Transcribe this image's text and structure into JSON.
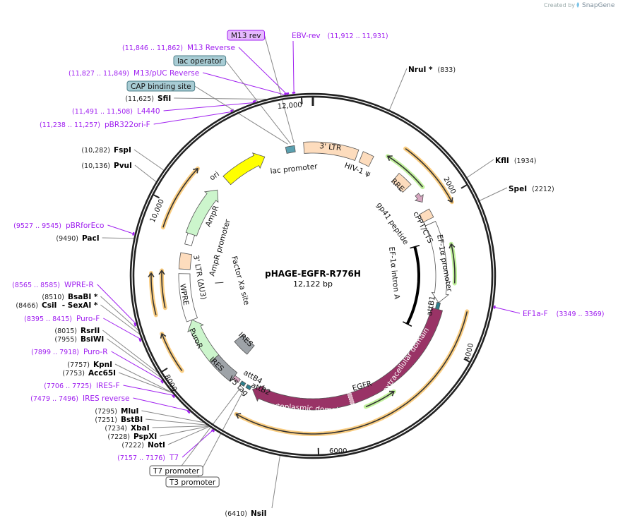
{
  "branding": {
    "created_by": "Created by",
    "app": "SnapGene"
  },
  "map": {
    "name": "pHAGE-EGFR-R776H",
    "length_label": "12,122 bp",
    "length_bp": 12122
  },
  "ticks": [
    {
      "bp": 2000,
      "label": "2000"
    },
    {
      "bp": 4000,
      "label": "4000"
    },
    {
      "bp": 6000,
      "label": "6000"
    },
    {
      "bp": 8000,
      "label": "8000"
    },
    {
      "bp": 10000,
      "label": "10,000"
    },
    {
      "bp": 12000,
      "label": "12,000"
    }
  ],
  "enzymes": [
    {
      "name": "NruI *",
      "pos_label": "(833)",
      "bp": 833
    },
    {
      "name": "KflI",
      "pos_label": "(1934)",
      "bp": 1934
    },
    {
      "name": "SpeI",
      "pos_label": "(2212)",
      "bp": 2212
    },
    {
      "name": "NsiI",
      "pos_label": "(6410)",
      "bp": 6410
    },
    {
      "name": "SfiI",
      "pos_label": "(11,625)",
      "bp": 11625
    },
    {
      "name": "FspI",
      "pos_label": "(10,282)",
      "bp": 10282
    },
    {
      "name": "PvuI",
      "pos_label": "(10,136)",
      "bp": 10136
    },
    {
      "name": "PacI",
      "pos_label": "(9490)",
      "bp": 9490
    },
    {
      "name": "BsaBI *",
      "pos_label": "(8510)",
      "bp": 8510
    },
    {
      "name": "CsiI  - SexAI *",
      "pos_label": "(8466)",
      "bp": 8466
    },
    {
      "name": "RsrII",
      "pos_label": "(8015)",
      "bp": 8015
    },
    {
      "name": "BsiWI",
      "pos_label": "(7955)",
      "bp": 7955
    },
    {
      "name": "KpnI",
      "pos_label": "(7757)",
      "bp": 7757
    },
    {
      "name": "Acc65I",
      "pos_label": "(7753)",
      "bp": 7753
    },
    {
      "name": "MluI",
      "pos_label": "(7295)",
      "bp": 7295
    },
    {
      "name": "BstBI",
      "pos_label": "(7251)",
      "bp": 7251
    },
    {
      "name": "XbaI",
      "pos_label": "(7234)",
      "bp": 7234
    },
    {
      "name": "PspXI",
      "pos_label": "(7228)",
      "bp": 7228
    },
    {
      "name": "NotI",
      "pos_label": "(7222)",
      "bp": 7222
    }
  ],
  "primers": [
    {
      "name": "M13 Reverse",
      "range": "(11,846 .. 11,862)",
      "start": 11846,
      "end": 11862
    },
    {
      "name": "M13/pUC Reverse",
      "range": "(11,827 .. 11,849)",
      "start": 11827,
      "end": 11849
    },
    {
      "name": "L4440",
      "range": "(11,491 .. 11,508)",
      "start": 11491,
      "end": 11508
    },
    {
      "name": "pBR322ori-F",
      "range": "(11,238 .. 11,257)",
      "start": 11238,
      "end": 11257
    },
    {
      "name": "pBRforEco",
      "range": "(9527 .. 9545)",
      "start": 9527,
      "end": 9545
    },
    {
      "name": "WPRE-R",
      "range": "(8565 .. 8585)",
      "start": 8565,
      "end": 8585
    },
    {
      "name": "Puro-F",
      "range": "(8395 .. 8415)",
      "start": 8395,
      "end": 8415
    },
    {
      "name": "Puro-R",
      "range": "(7899 .. 7918)",
      "start": 7899,
      "end": 7918
    },
    {
      "name": "IRES-F",
      "range": "(7706 .. 7725)",
      "start": 7706,
      "end": 7725
    },
    {
      "name": "IRES reverse",
      "range": "(7479 .. 7496)",
      "start": 7479,
      "end": 7496
    },
    {
      "name": "T7",
      "range": "(7157 .. 7176)",
      "start": 7157,
      "end": 7176
    },
    {
      "name": "EBV-rev",
      "range": "(11,912 .. 11,931)",
      "start": 11912,
      "end": 11931
    },
    {
      "name": "EF1a-F",
      "range": "(3349 .. 3369)",
      "start": 3349,
      "end": 3369
    }
  ],
  "boxed_features": [
    {
      "name": "M13 rev",
      "bp": 11850,
      "fill": "#e6b8ff",
      "border": "#a020f0"
    },
    {
      "name": "lac operator",
      "bp": 11800,
      "fill": "#a8ccd4",
      "border": "#4d7f8a"
    },
    {
      "name": "CAP binding site",
      "bp": 11760,
      "fill": "#a8ccd4",
      "border": "#4d7f8a"
    },
    {
      "name": "T7 promoter",
      "bp": 7170,
      "fill": "#ffffff",
      "border": "#555555"
    },
    {
      "name": "T3 promoter",
      "bp": 7110,
      "fill": "#ffffff",
      "border": "#555555"
    }
  ],
  "features": [
    {
      "label": "3' LTR",
      "start": 11987,
      "end": 673,
      "color": "#fddcbd",
      "direction": "none"
    },
    {
      "label": "HIV-1 ψ",
      "start": 741,
      "end": 909,
      "color": "#fddcbd",
      "direction": "none"
    },
    {
      "label": "RRE",
      "start": 1347,
      "end": 1583,
      "color": "#fddcbd",
      "direction": "none"
    },
    {
      "label": "gp41 peptide",
      "start": 1751,
      "end": 1886,
      "color": "#d7a6c0",
      "direction": "fwd"
    },
    {
      "label": "cPPT/CTS",
      "start": 2020,
      "end": 2155,
      "color": "#fddcbd",
      "direction": "none"
    },
    {
      "label": "EF-1α promoter",
      "start": 2222,
      "end": 3435,
      "color": "#ffffff",
      "direction": "fwd"
    },
    {
      "label": "attB1",
      "start": 3435,
      "end": 3536,
      "color": "#2e7f8c",
      "direction": "none"
    },
    {
      "label": "EGFR",
      "start": 3536,
      "end": 7004,
      "color": "#993366",
      "direction": "fwd"
    },
    {
      "label": "attB2",
      "start": 7037,
      "end": 7105,
      "color": "#2e7f8c",
      "direction": "none"
    },
    {
      "label": "attB4",
      "start": 7139,
      "end": 7206,
      "color": "#2e7f8c",
      "direction": "none"
    },
    {
      "label": "V5 tag",
      "start": 7240,
      "end": 7341,
      "color": "#d7a6c0",
      "direction": "none"
    },
    {
      "label": "IRES",
      "start": 7341,
      "end": 7745,
      "color": "#9ea3a8",
      "direction": "none"
    },
    {
      "label": "PuroR",
      "start": 7745,
      "end": 8418,
      "color": "#ccf5cc",
      "direction": "fwd"
    },
    {
      "label": "WPRE",
      "start": 8418,
      "end": 9125,
      "color": "#ffffff",
      "direction": "none"
    },
    {
      "label": "3' LTR (ΔU3)",
      "start": 9193,
      "end": 9428,
      "color": "#fddcbd",
      "direction": "none"
    },
    {
      "label": "AmpR promoter",
      "start": 9563,
      "end": 9731,
      "color": "#ffffff",
      "direction": "none"
    },
    {
      "label": "AmpR",
      "start": 9731,
      "end": 10506,
      "color": "#ccf5cc",
      "direction": "fwd"
    },
    {
      "label": "ori",
      "start": 10708,
      "end": 11381,
      "color": "#ffff00",
      "direction": "fwd"
    },
    {
      "label": "lac promoter",
      "start": 11718,
      "end": 11852,
      "color": "#5aa0b0",
      "direction": "none"
    },
    {
      "label": "IRES",
      "start": 7408,
      "end": 7745,
      "color": "#9ea3a8",
      "direction": "none"
    },
    {
      "label": "EF-1α intron A",
      "start": 2492,
      "end": 3940,
      "color": "#000000",
      "direction": "none"
    },
    {
      "label": "Factor Xa site",
      "start": 8950,
      "end": 8960,
      "color": "#333333",
      "direction": "none"
    }
  ],
  "egfr_domains": {
    "extracellular": "extracellular domain",
    "cytoplasmic": "cytoplasmic domain"
  },
  "primer_arcs": [
    {
      "start": 1212,
      "end": 2088,
      "direction": "fwd",
      "color": "#f9c46b"
    },
    {
      "start": 3468,
      "end": 7037,
      "direction": "fwd",
      "color": "#f9c46b"
    },
    {
      "start": 9697,
      "end": 10540,
      "direction": "fwd",
      "color": "#f9c46b"
    },
    {
      "start": 8620,
      "end": 9125,
      "direction": "fwd",
      "color": "#f9c46b"
    },
    {
      "start": 8680,
      "end": 9160,
      "direction": "fwd",
      "color": "#f9c46b"
    },
    {
      "start": 7880,
      "end": 8385,
      "direction": "fwd",
      "color": "#f9c46b"
    },
    {
      "start": 1077,
      "end": 1717,
      "direction": "rev",
      "color": "#b5ef8a"
    },
    {
      "start": 2592,
      "end": 3131,
      "direction": "rev",
      "color": "#b5ef8a"
    },
    {
      "start": 4882,
      "end": 5320,
      "direction": "rev",
      "color": "#b5ef8a"
    }
  ],
  "colors": {
    "primer": "#a020f0",
    "backbone": "#222222",
    "leader": "#888888"
  }
}
